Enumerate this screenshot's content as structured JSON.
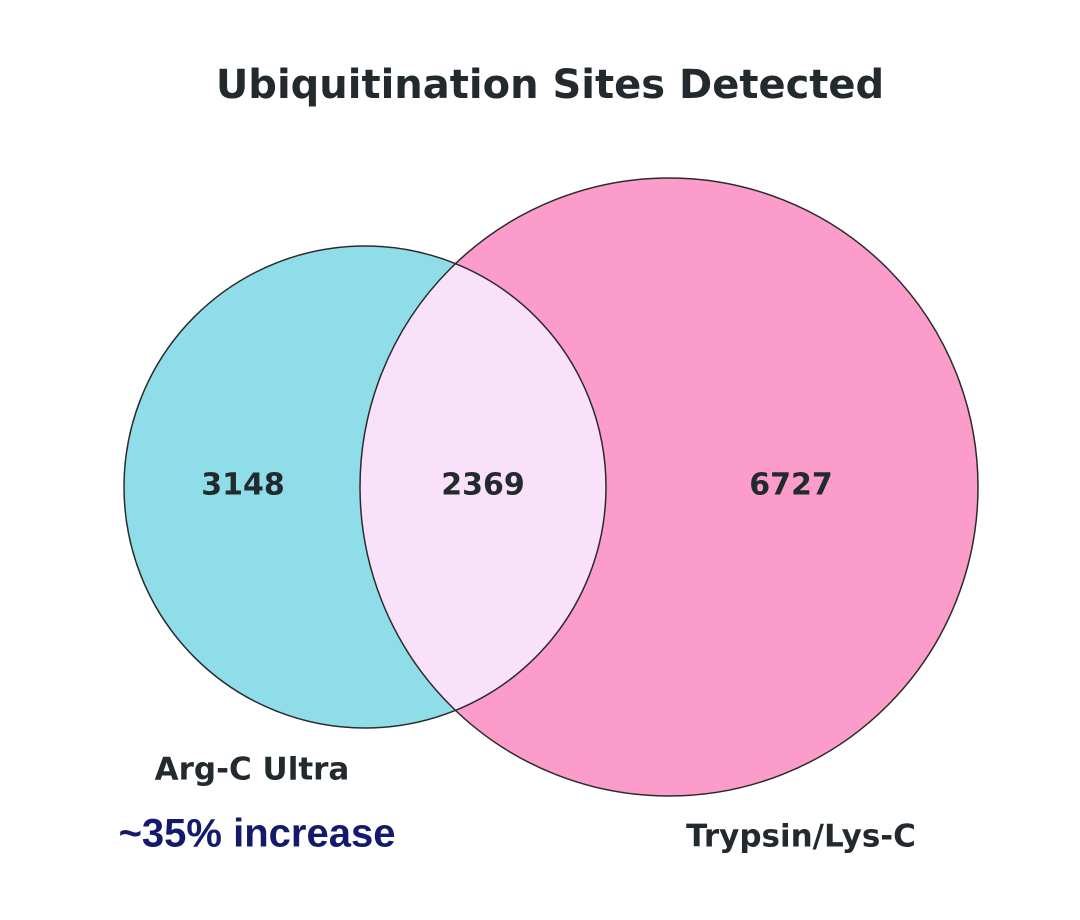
{
  "chart_data": {
    "type": "venn",
    "title": "Ubiquitination Sites Detected",
    "series": [
      {
        "name": "Arg-C Ultra",
        "color": "#8fdde8"
      },
      {
        "name": "Trypsin/Lys-C",
        "color": "#fb9ccb"
      }
    ],
    "values": [
      3148,
      2369,
      6727
    ],
    "intersection_color": "#f9e2f9",
    "annotation": "~35% increase",
    "annotation_color": "#141a6b"
  }
}
